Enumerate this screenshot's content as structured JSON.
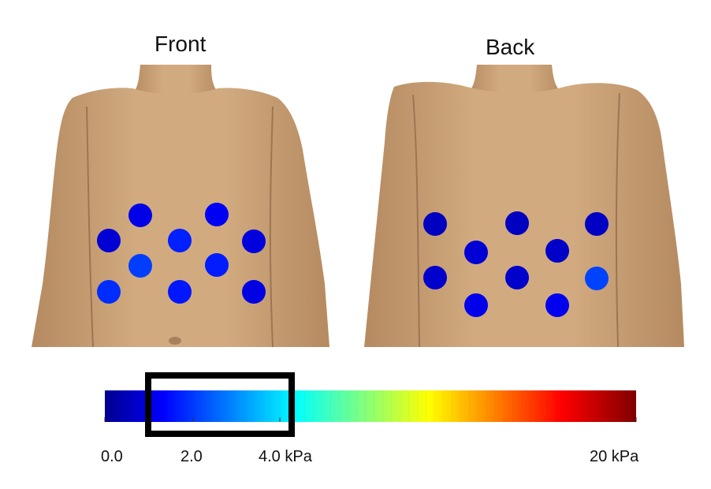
{
  "panels": {
    "front_title": "Front",
    "back_title": "Back"
  },
  "colorbar": {
    "min_kpa": 0,
    "max_kpa": 20,
    "highlight_range_kpa": [
      1.0,
      4.0
    ],
    "tick_labels": [
      "0.0",
      "2.0",
      "4.0 kPa",
      "20 kPa"
    ]
  },
  "sensor_pressures_kpa": {
    "front": [
      {
        "id": "f1",
        "value": 1.2
      },
      {
        "id": "f2",
        "value": 1.5
      },
      {
        "id": "f3",
        "value": 0.8
      },
      {
        "id": "f4",
        "value": 2.5
      },
      {
        "id": "f5",
        "value": 1.0
      },
      {
        "id": "f6",
        "value": 3.2
      },
      {
        "id": "f7",
        "value": 2.4
      },
      {
        "id": "f8",
        "value": 2.8
      },
      {
        "id": "f9",
        "value": 2.3
      },
      {
        "id": "f10",
        "value": 1.1
      }
    ],
    "back": [
      {
        "id": "b1",
        "value": 0.3
      },
      {
        "id": "b2",
        "value": 0.3
      },
      {
        "id": "b3",
        "value": 0.4
      },
      {
        "id": "b4",
        "value": 0.8
      },
      {
        "id": "b5",
        "value": 0.5
      },
      {
        "id": "b6",
        "value": 0.6
      },
      {
        "id": "b7",
        "value": 0.6
      },
      {
        "id": "b8",
        "value": 3.3
      },
      {
        "id": "b9",
        "value": 1.3
      },
      {
        "id": "b10",
        "value": 1.4
      }
    ]
  },
  "colors": {
    "skin": "#c9a27a",
    "skin_shadow": "#b88f68",
    "highlight_box": "#000000"
  }
}
